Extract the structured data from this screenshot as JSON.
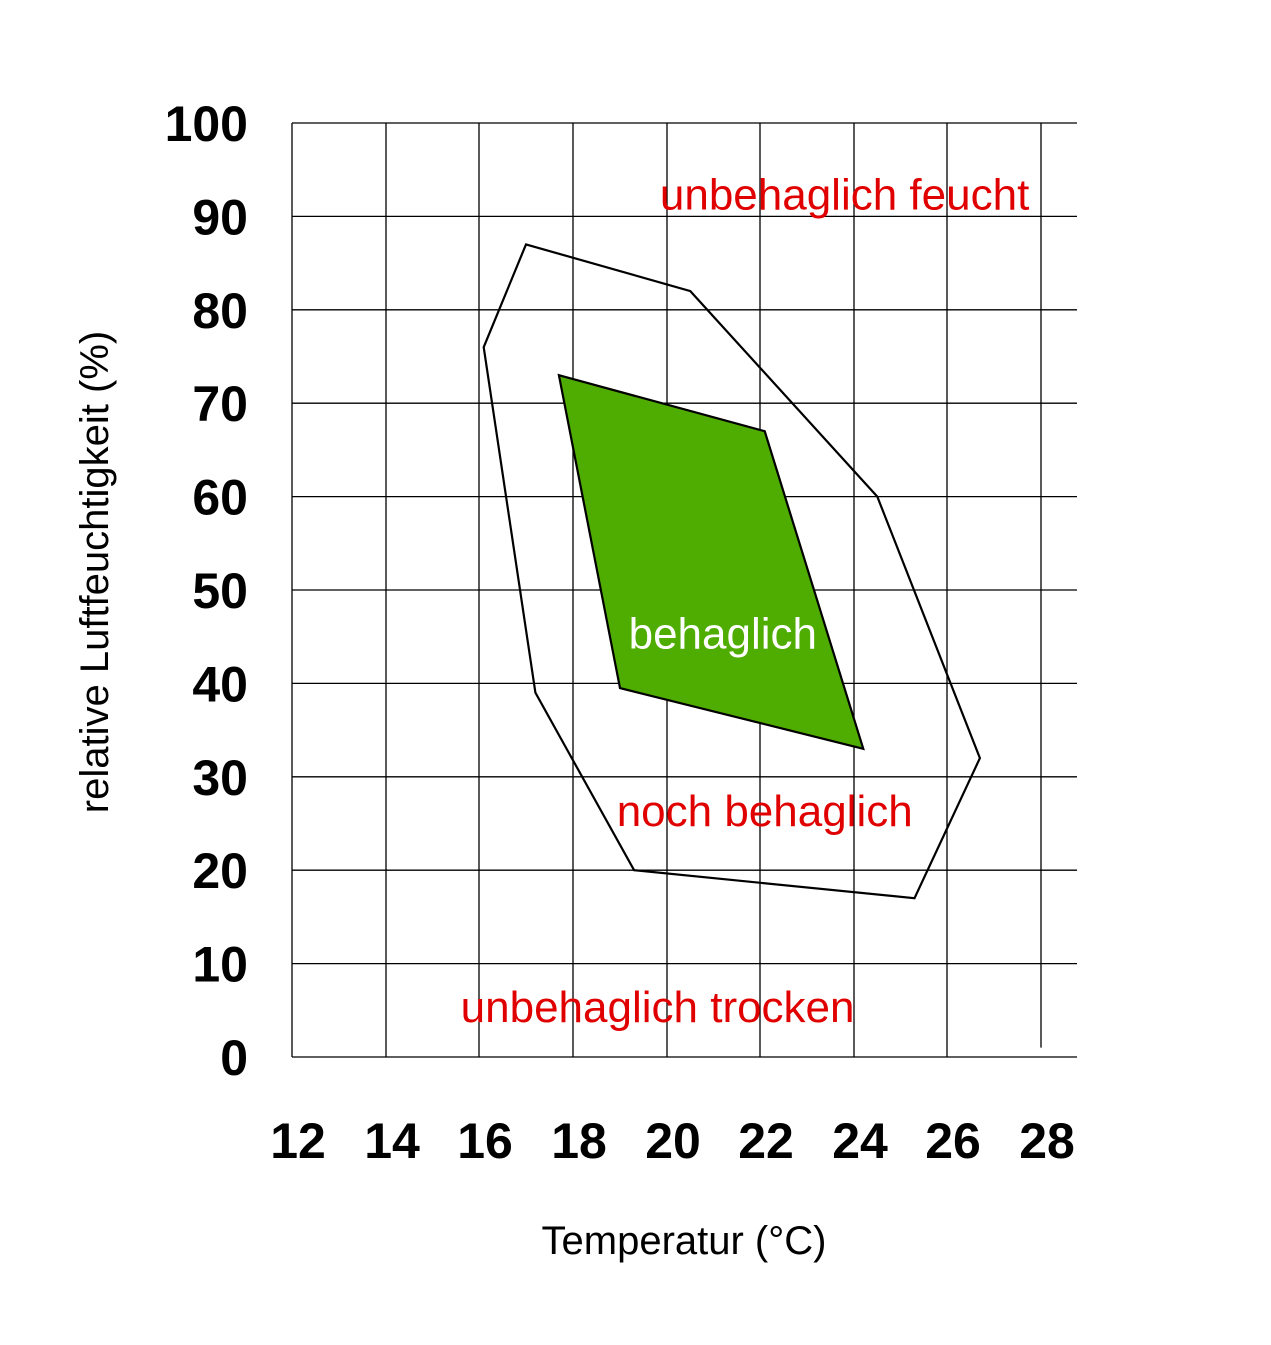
{
  "chart_data": {
    "type": "area",
    "title": "",
    "xlabel": "Temperatur (°C)",
    "ylabel": "relative Luftfeuchtigkeit (%)",
    "xlim": [
      12,
      28
    ],
    "ylim": [
      0,
      100
    ],
    "x_ticks": [
      "12",
      "14",
      "16",
      "18",
      "20",
      "22",
      "24",
      "26",
      "28"
    ],
    "y_ticks": [
      "0",
      "10",
      "20",
      "30",
      "40",
      "50",
      "60",
      "70",
      "80",
      "90",
      "100"
    ],
    "grid": true,
    "series": [
      {
        "name": "noch behaglich",
        "fill": "none",
        "stroke": "#000000",
        "points": [
          [
            17.0,
            87
          ],
          [
            20.5,
            82
          ],
          [
            24.5,
            60
          ],
          [
            26.7,
            32
          ],
          [
            25.3,
            17
          ],
          [
            19.3,
            20
          ],
          [
            17.2,
            39
          ],
          [
            16.1,
            76
          ]
        ]
      },
      {
        "name": "behaglich",
        "fill": "#4fac00",
        "stroke": "#000000",
        "points": [
          [
            17.7,
            73
          ],
          [
            22.1,
            67
          ],
          [
            24.2,
            33
          ],
          [
            19.0,
            39.5
          ]
        ]
      }
    ],
    "annotations": [
      {
        "text": "unbehaglich feucht",
        "x": 23.8,
        "y": 92,
        "color": "#e00000"
      },
      {
        "text": "behaglich",
        "x": 21.2,
        "y": 45,
        "color": "#ffffff"
      },
      {
        "text": "noch behaglich",
        "x": 22.1,
        "y": 26,
        "color": "#e00000"
      },
      {
        "text": "unbehaglich trocken",
        "x": 19.8,
        "y": 5,
        "color": "#e00000"
      }
    ],
    "colors": {
      "grid": "#000000",
      "comfortable_fill": "#4fac00",
      "region_text": "#e00000",
      "inner_text": "#ffffff"
    }
  }
}
